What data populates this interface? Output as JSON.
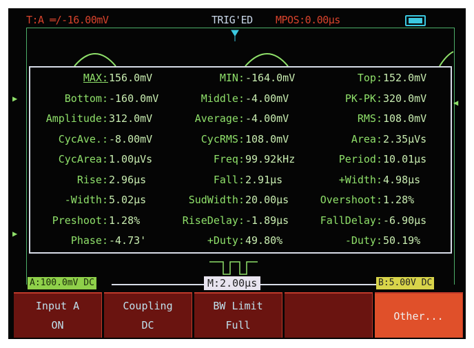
{
  "header": {
    "trigger": "T:A ═/-16.00mV",
    "status": "TRIG'ED",
    "mpos": "MPOS:0.00µs",
    "battery_icon": "battery-full-icon"
  },
  "measurements": [
    [
      [
        "MAX:",
        "156.0mV"
      ],
      [
        "MIN:",
        "-164.0mV"
      ],
      [
        "Top:",
        "152.0mV"
      ]
    ],
    [
      [
        "Bottom:",
        "-160.0mV"
      ],
      [
        "Middle:",
        "-4.00mV"
      ],
      [
        "PK-PK:",
        "320.0mV"
      ]
    ],
    [
      [
        "Amplitude:",
        "312.0mV"
      ],
      [
        "Average:",
        "-4.00mV"
      ],
      [
        "RMS:",
        "108.0mV"
      ]
    ],
    [
      [
        "CycAve.:",
        "-8.00mV"
      ],
      [
        "CycRMS:",
        "108.0mV"
      ],
      [
        "Area:",
        "2.35µVs"
      ]
    ],
    [
      [
        "CycArea:",
        "1.00µVs"
      ],
      [
        "Freq:",
        "99.92kHz"
      ],
      [
        "Period:",
        "10.01µs"
      ]
    ],
    [
      [
        "Rise:",
        "2.96µs"
      ],
      [
        "Fall:",
        "2.91µs"
      ],
      [
        "+Width:",
        "4.98µs"
      ]
    ],
    [
      [
        "-Width:",
        "5.02µs"
      ],
      [
        "SudWidth:",
        "20.00µs"
      ],
      [
        "Overshoot:",
        "1.28%"
      ]
    ],
    [
      [
        "Preshoot:",
        "1.28%"
      ],
      [
        "RiseDelay:",
        "-1.89µs"
      ],
      [
        "FallDelay:",
        "-6.90µs"
      ]
    ],
    [
      [
        "Phase:",
        "-4.73'"
      ],
      [
        "+Duty:",
        "49.80%"
      ],
      [
        "-Duty:",
        "50.19%"
      ]
    ]
  ],
  "status_bar": {
    "channel_a": "A:100.0mV DC",
    "timebase": "M:2.00µs",
    "channel_b": "B:5.00V DC"
  },
  "menu": [
    {
      "line1": "Input A",
      "line2": "ON"
    },
    {
      "line1": "Coupling",
      "line2": "DC"
    },
    {
      "line1": "BW Limit",
      "line2": "Full"
    },
    {
      "line1": "",
      "line2": ""
    },
    {
      "line1": "Other...",
      "line2": ""
    }
  ],
  "colors": {
    "trace": "#8fe06a",
    "accent": "#d8432c",
    "menu_bg": "#6a1410",
    "menu_selected": "#e0502a"
  }
}
